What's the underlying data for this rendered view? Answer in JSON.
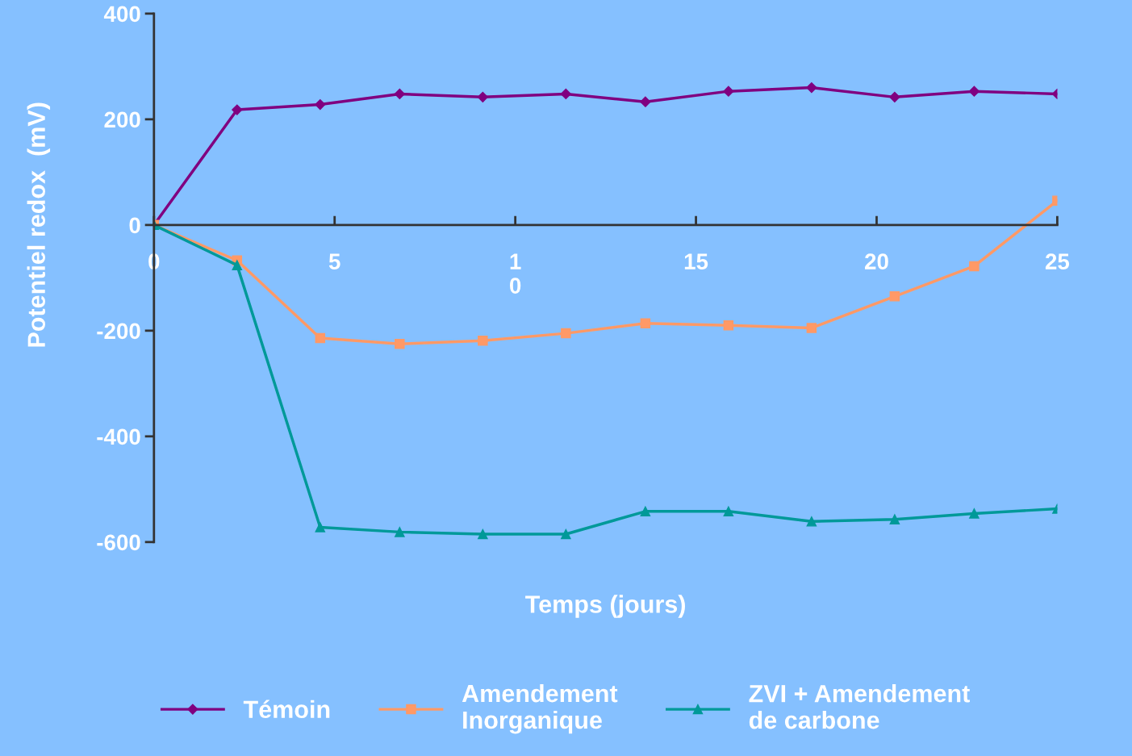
{
  "chart_data": {
    "type": "line",
    "xlabel": "Temps (jours)",
    "ylabel": "Potentiel redox  (mV)",
    "x": [
      0,
      2.3,
      4.6,
      6.8,
      9.1,
      11.4,
      13.6,
      15.9,
      18.2,
      20.5,
      22.7,
      25
    ],
    "xlim": [
      0,
      25
    ],
    "xticks": [
      0,
      5,
      {
        "value": 10,
        "label": "1\n0"
      },
      15,
      20,
      25
    ],
    "ylim": [
      -600,
      400
    ],
    "yticks": [
      -600,
      -400,
      -200,
      0,
      200,
      400
    ],
    "grid": false,
    "legend": "bottom",
    "series": [
      {
        "name": "Témoin",
        "color": "#800080",
        "marker": "diamond",
        "values": [
          0,
          218,
          228,
          248,
          242,
          248,
          233,
          253,
          260,
          242,
          253,
          248
        ]
      },
      {
        "name": "Amendement\nInorganique",
        "color": "#ff9966",
        "marker": "square",
        "values": [
          0,
          -67,
          -214,
          -225,
          -219,
          -205,
          -186,
          -190,
          -195,
          -135,
          -78,
          46
        ]
      },
      {
        "name": "ZVI + Amendement\nde carbone",
        "color": "#009999",
        "marker": "triangle",
        "values": [
          0,
          -76,
          -572,
          -581,
          -585,
          -585,
          -542,
          -542,
          -561,
          -557,
          -546,
          -537
        ]
      }
    ]
  }
}
